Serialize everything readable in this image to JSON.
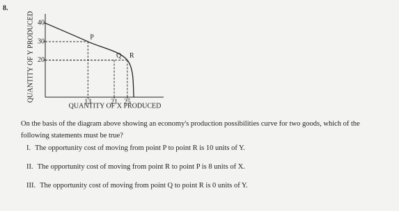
{
  "question_number": "8.",
  "chart_data": {
    "type": "line",
    "x_label": "QUANTITY OF X PRODUCED",
    "y_label": "QUANTITY OF Y PRODUCED",
    "xlim": [
      0,
      35
    ],
    "ylim": [
      0,
      45
    ],
    "xticks": [
      13,
      21,
      25
    ],
    "yticks": [
      20,
      30,
      40
    ],
    "series": [
      {
        "color": "#222222",
        "x": [
          0,
          13,
          25,
          27
        ],
        "values": [
          40,
          30,
          20,
          0
        ]
      }
    ],
    "points": [
      {
        "label": "P",
        "x": 13,
        "y": 30
      },
      {
        "label": "Q",
        "x": 21,
        "y": 20
      },
      {
        "label": "R",
        "x": 25,
        "y": 20
      }
    ]
  },
  "question": "On the basis of the diagram above showing an economy's production possibilities curve for two goods, which of the following statements must be true?",
  "statements": [
    {
      "numeral": "I.",
      "text": "The opportunity cost of moving from point P to point R is 10 units of Y."
    },
    {
      "numeral": "II.",
      "text": "The opportunity cost of moving from point R to point P is 8 units of X."
    },
    {
      "numeral": "III.",
      "text": "The opportunity cost of moving from point Q to point R is 0 units of Y."
    }
  ]
}
